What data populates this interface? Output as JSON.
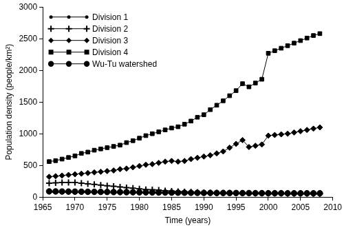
{
  "chart_data": {
    "type": "line",
    "x_label": "Time (years)",
    "y_label": "Population density (people/km²)",
    "x": [
      1966,
      1967,
      1968,
      1969,
      1970,
      1971,
      1972,
      1973,
      1974,
      1975,
      1976,
      1977,
      1978,
      1979,
      1980,
      1981,
      1982,
      1983,
      1984,
      1985,
      1986,
      1987,
      1988,
      1989,
      1990,
      1991,
      1992,
      1993,
      1994,
      1995,
      1996,
      1997,
      1998,
      1999,
      2000,
      2001,
      2002,
      2003,
      2004,
      2005,
      2006,
      2007,
      2008
    ],
    "xlim": [
      1965,
      2010
    ],
    "xticks": [
      1965,
      1970,
      1975,
      1980,
      1985,
      1990,
      1995,
      2000,
      2005,
      2010
    ],
    "ylim": [
      0,
      3000
    ],
    "yticks": [
      0,
      500,
      1000,
      1500,
      2000,
      2500,
      3000
    ],
    "grid": false,
    "legend": "upper left",
    "series": [
      {
        "name": "Division 1",
        "color": "#000000",
        "marker": "dot",
        "line_style": "solid",
        "values": [
          75,
          75,
          74,
          74,
          73,
          72,
          71,
          70,
          69,
          68,
          67,
          66,
          65,
          64,
          63,
          62,
          61,
          60,
          59,
          58,
          57,
          56,
          55,
          55,
          54,
          53,
          52,
          52,
          51,
          50,
          50,
          49,
          49,
          48,
          48,
          47,
          47,
          46,
          46,
          46,
          45,
          45,
          45
        ]
      },
      {
        "name": "Division 2",
        "color": "#000000",
        "marker": "cross",
        "line_style": "solid",
        "values": [
          220,
          225,
          230,
          230,
          230,
          220,
          210,
          200,
          190,
          180,
          170,
          160,
          150,
          140,
          130,
          120,
          115,
          110,
          100,
          95,
          90,
          85,
          80,
          75,
          70,
          68,
          66,
          65,
          64,
          63,
          62,
          61,
          60,
          60,
          59,
          58,
          58,
          57,
          57,
          56,
          56,
          55,
          55
        ]
      },
      {
        "name": "Division 3",
        "color": "#000000",
        "marker": "diamond",
        "line_style": "solid",
        "values": [
          320,
          330,
          340,
          350,
          360,
          370,
          380,
          390,
          400,
          410,
          420,
          440,
          450,
          470,
          490,
          510,
          520,
          540,
          560,
          570,
          560,
          570,
          600,
          620,
          640,
          660,
          690,
          720,
          780,
          840,
          900,
          790,
          810,
          830,
          970,
          980,
          990,
          1000,
          1020,
          1040,
          1060,
          1080,
          1100
        ]
      },
      {
        "name": "Division 4",
        "color": "#000000",
        "marker": "square",
        "line_style": "solid",
        "values": [
          560,
          575,
          600,
          625,
          650,
          690,
          710,
          740,
          760,
          780,
          800,
          820,
          860,
          890,
          930,
          970,
          1000,
          1030,
          1060,
          1090,
          1110,
          1150,
          1200,
          1260,
          1300,
          1380,
          1450,
          1520,
          1600,
          1680,
          1790,
          1740,
          1800,
          1860,
          2270,
          2310,
          2350,
          2390,
          2430,
          2470,
          2510,
          2550,
          2580
        ]
      },
      {
        "name": "Wu-Tu watershed",
        "color": "#000000",
        "marker": "circle",
        "line_style": "solid",
        "values": [
          90,
          89,
          88,
          87,
          86,
          85,
          84,
          83,
          82,
          81,
          80,
          79,
          78,
          77,
          76,
          75,
          74,
          73,
          72,
          71,
          70,
          69,
          68,
          67,
          66,
          66,
          65,
          65,
          64,
          64,
          63,
          63,
          62,
          62,
          61,
          61,
          61,
          60,
          60,
          60,
          60,
          60,
          60
        ]
      }
    ]
  }
}
